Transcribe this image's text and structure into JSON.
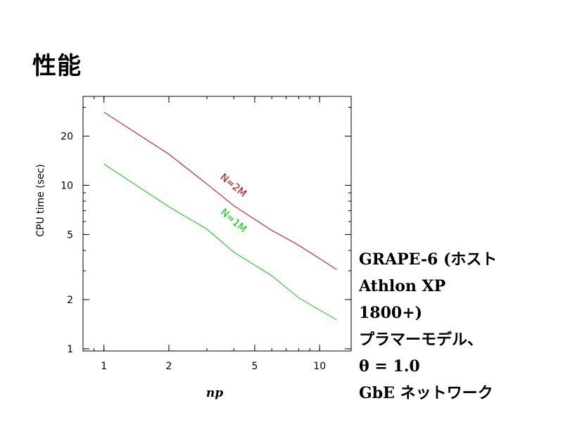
{
  "slide": {
    "title": "性能",
    "notes": [
      "GRAPE-6 (ホスト",
      "Athlon XP",
      "1800+)",
      "プラマーモデル、",
      "θ = 1.0",
      "GbE ネットワーク"
    ]
  },
  "chart_data": {
    "type": "line",
    "xlabel": "np",
    "ylabel": "CPU time (sec)",
    "xscale": "log",
    "yscale": "log",
    "xlim": [
      0.8,
      14
    ],
    "ylim": [
      0.97,
      35
    ],
    "x_ticks": [
      1,
      2,
      5,
      10
    ],
    "y_ticks": [
      1,
      2,
      5,
      10,
      20
    ],
    "series": [
      {
        "name": "N=2M",
        "color": "#cc0000",
        "x": [
          1,
          2,
          3,
          4,
          6,
          8,
          12
        ],
        "y": [
          28,
          15.5,
          10.2,
          7.5,
          5.3,
          4.3,
          3.05
        ]
      },
      {
        "name": "N=1M",
        "color": "#00cc00",
        "x": [
          1,
          2,
          3,
          4,
          6,
          8,
          12
        ],
        "y": [
          13.5,
          7.4,
          5.4,
          3.9,
          2.8,
          2.05,
          1.5
        ]
      }
    ]
  }
}
